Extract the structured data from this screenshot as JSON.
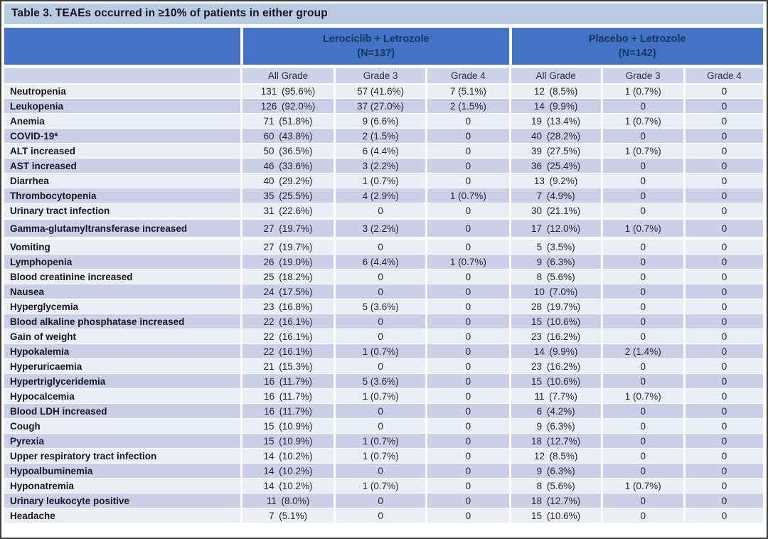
{
  "title": "Table 3. TEAEs occurred in ≥10% of patients in either group",
  "groups": [
    {
      "name": "Lerociclib + Letrozole",
      "n": "(N=137)"
    },
    {
      "name": "Placebo + Letrozole",
      "n": "(N=142)"
    }
  ],
  "subheaders": [
    "All Grade",
    "Grade 3",
    "Grade 4",
    "All Grade",
    "Grade 3",
    "Grade 4"
  ],
  "colors": {
    "header_blue": "#4472c4",
    "header_text": "#17375e",
    "title_bar": "#b9cae3",
    "subheader_bg": "#ccd3e9",
    "row_light": "#eceef6",
    "row_dark": "#c9d0e8"
  },
  "rows": [
    {
      "name": "Neutropenia",
      "cells": [
        "131 (95.6%)",
        "57 (41.6%)",
        "7 (5.1%)",
        "12 (8.5%)",
        "1 (0.7%)",
        "0"
      ]
    },
    {
      "name": "Leukopenia",
      "cells": [
        "126 (92.0%)",
        "37 (27.0%)",
        "2 (1.5%)",
        "14 (9.9%)",
        "0",
        "0"
      ]
    },
    {
      "name": "Anemia",
      "cells": [
        "71 (51.8%)",
        "9 (6.6%)",
        "0",
        "19 (13.4%)",
        "1 (0.7%)",
        "0"
      ]
    },
    {
      "name": "COVID-19*",
      "cells": [
        "60 (43.8%)",
        "2 (1.5%)",
        "0",
        "40 (28.2%)",
        "0",
        "0"
      ]
    },
    {
      "name": "ALT increased",
      "cells": [
        "50 (36.5%)",
        "6 (4.4%)",
        "0",
        "39 (27.5%)",
        "1 (0.7%)",
        "0"
      ]
    },
    {
      "name": "AST increased",
      "cells": [
        "46 (33.6%)",
        "3 (2.2%)",
        "0",
        "36 (25.4%)",
        "0",
        "0"
      ]
    },
    {
      "name": "Diarrhea",
      "cells": [
        "40 (29.2%)",
        "1 (0.7%)",
        "0",
        "13 (9.2%)",
        "0",
        "0"
      ]
    },
    {
      "name": "Thrombocytopenia",
      "cells": [
        "35 (25.5%)",
        "4 (2.9%)",
        "1 (0.7%)",
        "7 (4.9%)",
        "0",
        "0"
      ]
    },
    {
      "name": "Urinary tract infection",
      "cells": [
        "31 (22.6%)",
        "0",
        "0",
        "30 (21.1%)",
        "0",
        "0"
      ]
    },
    {
      "name": "Gamma-glutamyltransferase increased",
      "tall": true,
      "cells": [
        "27 (19.7%)",
        "3 (2.2%)",
        "0",
        "17 (12.0%)",
        "1 (0.7%)",
        "0"
      ]
    },
    {
      "name": "Vomiting",
      "cells": [
        "27 (19.7%)",
        "0",
        "0",
        "5 (3.5%)",
        "0",
        "0"
      ]
    },
    {
      "name": "Lymphopenia",
      "cells": [
        "26 (19.0%)",
        "6 (4.4%)",
        "1 (0.7%)",
        "9 (6.3%)",
        "0",
        "0"
      ]
    },
    {
      "name": "Blood creatinine increased",
      "cells": [
        "25 (18.2%)",
        "0",
        "0",
        "8 (5.6%)",
        "0",
        "0"
      ]
    },
    {
      "name": "Nausea",
      "cells": [
        "24 (17.5%)",
        "0",
        "0",
        "10 (7.0%)",
        "0",
        "0"
      ]
    },
    {
      "name": "Hyperglycemia",
      "cells": [
        "23 (16.8%)",
        "5 (3.6%)",
        "0",
        "28 (19.7%)",
        "0",
        "0"
      ]
    },
    {
      "name": "Blood alkaline phosphatase increased",
      "cells": [
        "22 (16.1%)",
        "0",
        "0",
        "15 (10.6%)",
        "0",
        "0"
      ]
    },
    {
      "name": "Gain of weight",
      "cells": [
        "22 (16.1%)",
        "0",
        "0",
        "23 (16.2%)",
        "0",
        "0"
      ]
    },
    {
      "name": "Hypokalemia",
      "cells": [
        "22 (16.1%)",
        "1 (0.7%)",
        "0",
        "14 (9.9%)",
        "2 (1.4%)",
        "0"
      ]
    },
    {
      "name": "Hyperuricaemia",
      "cells": [
        "21 (15.3%)",
        "0",
        "0",
        "23 (16.2%)",
        "0",
        "0"
      ]
    },
    {
      "name": "Hypertriglyceridemia",
      "cells": [
        "16 (11.7%)",
        "5 (3.6%)",
        "0",
        "15 (10.6%)",
        "0",
        "0"
      ]
    },
    {
      "name": "Hypocalcemia",
      "cells": [
        "16 (11.7%)",
        "1 (0.7%)",
        "0",
        "11 (7.7%)",
        "1 (0.7%)",
        "0"
      ]
    },
    {
      "name": "Blood LDH increased",
      "cells": [
        "16 (11.7%)",
        "0",
        "0",
        "6 (4.2%)",
        "0",
        "0"
      ]
    },
    {
      "name": "Cough",
      "cells": [
        "15 (10.9%)",
        "0",
        "0",
        "9 (6.3%)",
        "0",
        "0"
      ]
    },
    {
      "name": "Pyrexia",
      "cells": [
        "15 (10.9%)",
        "1 (0.7%)",
        "0",
        "18 (12.7%)",
        "0",
        "0"
      ]
    },
    {
      "name": "Upper respiratory tract infection",
      "cells": [
        "14 (10.2%)",
        "1 (0.7%)",
        "0",
        "12 (8.5%)",
        "0",
        "0"
      ]
    },
    {
      "name": "Hypoalbuminemia",
      "cells": [
        "14 (10.2%)",
        "0",
        "0",
        "9 (6.3%)",
        "0",
        "0"
      ]
    },
    {
      "name": "Hyponatremia",
      "cells": [
        "14 (10.2%)",
        "1 (0.7%)",
        "0",
        "8 (5.6%)",
        "1 (0.7%)",
        "0"
      ]
    },
    {
      "name": "Urinary leukocyte positive",
      "cells": [
        "11 (8.0%)",
        "0",
        "0",
        "18 (12.7%)",
        "0",
        "0"
      ]
    },
    {
      "name": "Headache",
      "cells": [
        "7 (5.1%)",
        "0",
        "0",
        "15 (10.6%)",
        "0",
        "0"
      ]
    }
  ]
}
